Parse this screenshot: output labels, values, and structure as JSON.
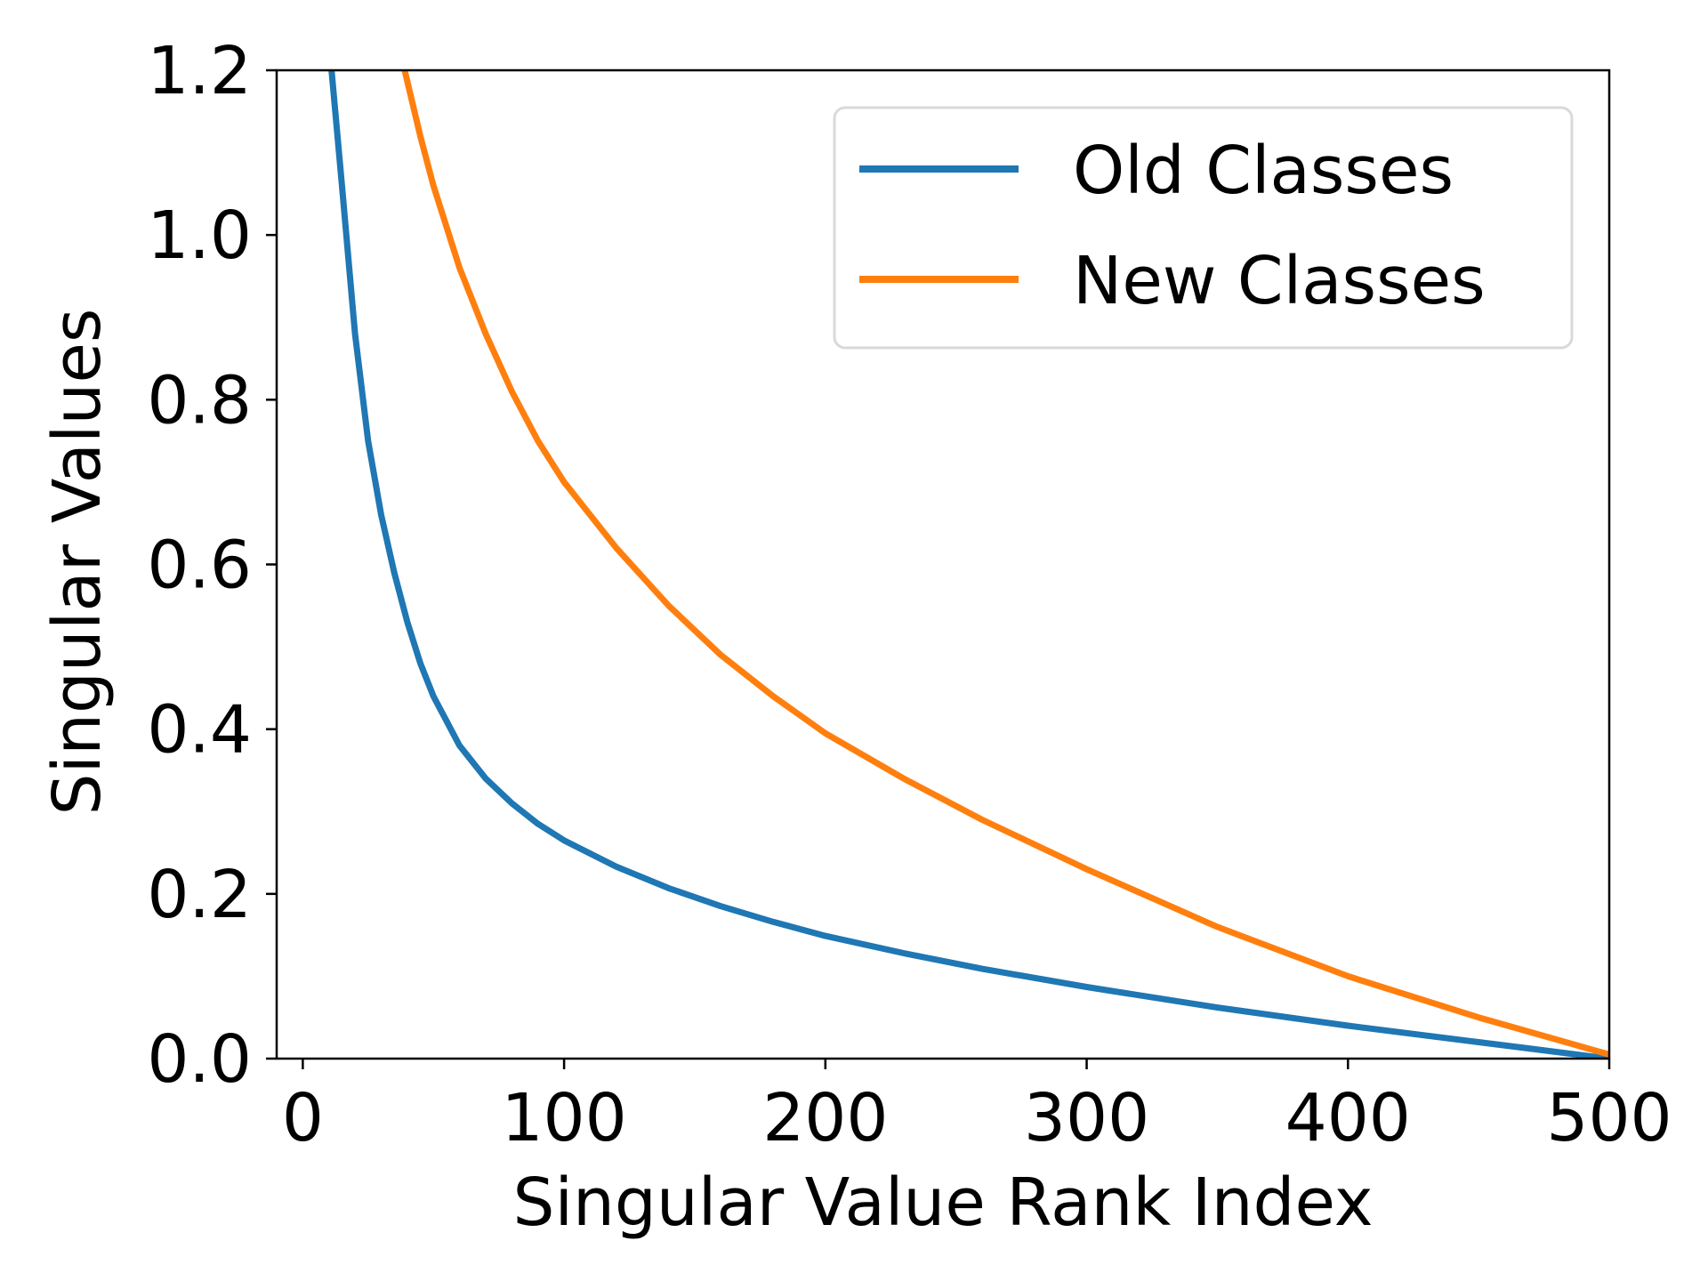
{
  "chart_data": {
    "type": "line",
    "title": "",
    "xlabel": "Singular Value Rank Index",
    "ylabel": "Singular Values",
    "xlim": [
      -10,
      500
    ],
    "ylim": [
      0.0,
      1.2
    ],
    "x_ticks": [
      0,
      100,
      200,
      300,
      400,
      500
    ],
    "x_tick_labels": [
      "0",
      "100",
      "200",
      "300",
      "400",
      "500"
    ],
    "y_ticks": [
      0.0,
      0.2,
      0.4,
      0.6,
      0.8,
      1.0,
      1.2
    ],
    "y_tick_labels": [
      "0.0",
      "0.2",
      "0.4",
      "0.6",
      "0.8",
      "1.0",
      "1.2"
    ],
    "grid": false,
    "legend_position": "top-right",
    "series": [
      {
        "name": "Old Classes",
        "color": "#1f77b4",
        "x": [
          11,
          15,
          20,
          25,
          30,
          35,
          40,
          45,
          50,
          55,
          60,
          70,
          80,
          90,
          100,
          120,
          140,
          160,
          180,
          200,
          230,
          260,
          300,
          350,
          400,
          450,
          470,
          500
        ],
        "y": [
          1.2,
          1.06,
          0.88,
          0.75,
          0.66,
          0.59,
          0.53,
          0.48,
          0.44,
          0.41,
          0.38,
          0.34,
          0.31,
          0.285,
          0.265,
          0.233,
          0.207,
          0.185,
          0.166,
          0.149,
          0.128,
          0.109,
          0.087,
          0.062,
          0.04,
          0.02,
          0.012,
          0.0
        ]
      },
      {
        "name": "New Classes",
        "color": "#ff7f0e",
        "x": [
          39,
          45,
          50,
          55,
          60,
          70,
          80,
          90,
          100,
          120,
          140,
          160,
          180,
          200,
          230,
          260,
          300,
          350,
          400,
          450,
          500
        ],
        "y": [
          1.2,
          1.12,
          1.06,
          1.01,
          0.96,
          0.88,
          0.81,
          0.75,
          0.7,
          0.62,
          0.55,
          0.49,
          0.44,
          0.395,
          0.34,
          0.29,
          0.23,
          0.16,
          0.1,
          0.05,
          0.005
        ]
      }
    ]
  }
}
